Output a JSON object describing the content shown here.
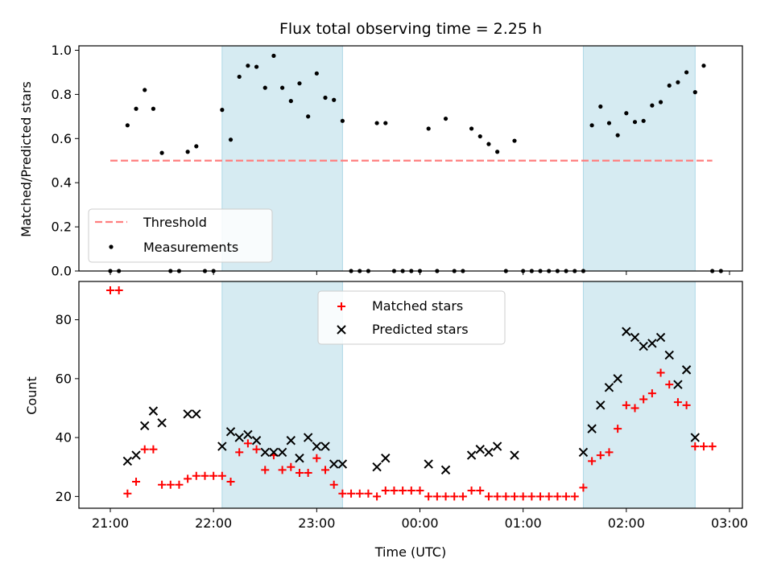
{
  "chart_data": [
    {
      "type": "scatter",
      "title": "Flux total observing time = 2.25 h",
      "xlabel": "",
      "ylabel": "Matched/Predicted stars",
      "ylim": [
        0,
        1.02
      ],
      "yticks": [
        "0.0",
        "0.2",
        "0.4",
        "0.6",
        "0.8",
        "1.0"
      ],
      "shaded_intervals": [
        [
          "22:05",
          "23:15"
        ],
        [
          "01:35",
          "02:40"
        ]
      ],
      "shade_color": "#add8e6",
      "threshold": {
        "name": "Threshold",
        "value": 0.5,
        "x_start": "21:00",
        "x_end": "02:50",
        "color": "#ff7f7f",
        "style": "dashed"
      },
      "series": [
        {
          "name": "Measurements",
          "marker": "dot",
          "color": "#000000",
          "points": [
            [
              "21:00",
              0
            ],
            [
              "21:05",
              0
            ],
            [
              "21:10",
              0.66
            ],
            [
              "21:15",
              0.735
            ],
            [
              "21:20",
              0.82
            ],
            [
              "21:25",
              0.735
            ],
            [
              "21:30",
              0.535
            ],
            [
              "21:35",
              0
            ],
            [
              "21:40",
              0
            ],
            [
              "21:45",
              0.54
            ],
            [
              "21:50",
              0.565
            ],
            [
              "21:55",
              0
            ],
            [
              "22:00",
              0
            ],
            [
              "22:05",
              0.73
            ],
            [
              "22:10",
              0.595
            ],
            [
              "22:15",
              0.88
            ],
            [
              "22:20",
              0.93
            ],
            [
              "22:25",
              0.925
            ],
            [
              "22:30",
              0.83
            ],
            [
              "22:35",
              0.975
            ],
            [
              "22:40",
              0.83
            ],
            [
              "22:45",
              0.77
            ],
            [
              "22:50",
              0.85
            ],
            [
              "22:55",
              0.7
            ],
            [
              "23:00",
              0.895
            ],
            [
              "23:05",
              0.785
            ],
            [
              "23:10",
              0.775
            ],
            [
              "23:15",
              0.68
            ],
            [
              "23:20",
              0
            ],
            [
              "23:25",
              0
            ],
            [
              "23:30",
              0
            ],
            [
              "23:35",
              0.67
            ],
            [
              "23:40",
              0.67
            ],
            [
              "23:45",
              0
            ],
            [
              "23:50",
              0
            ],
            [
              "23:55",
              0
            ],
            [
              "00:00",
              0
            ],
            [
              "00:05",
              0.645
            ],
            [
              "00:10",
              0
            ],
            [
              "00:15",
              0.69
            ],
            [
              "00:20",
              0
            ],
            [
              "00:25",
              0
            ],
            [
              "00:30",
              0.645
            ],
            [
              "00:35",
              0.61
            ],
            [
              "00:40",
              0.575
            ],
            [
              "00:45",
              0.54
            ],
            [
              "00:50",
              0
            ],
            [
              "00:55",
              0.59
            ],
            [
              "01:00",
              0
            ],
            [
              "01:05",
              0
            ],
            [
              "01:10",
              0
            ],
            [
              "01:15",
              0
            ],
            [
              "01:20",
              0
            ],
            [
              "01:25",
              0
            ],
            [
              "01:30",
              0
            ],
            [
              "01:35",
              0
            ],
            [
              "01:40",
              0.66
            ],
            [
              "01:45",
              0.745
            ],
            [
              "01:50",
              0.67
            ],
            [
              "01:55",
              0.615
            ],
            [
              "02:00",
              0.715
            ],
            [
              "02:05",
              0.675
            ],
            [
              "02:10",
              0.68
            ],
            [
              "02:15",
              0.75
            ],
            [
              "02:20",
              0.765
            ],
            [
              "02:25",
              0.84
            ],
            [
              "02:30",
              0.855
            ],
            [
              "02:35",
              0.9
            ],
            [
              "02:40",
              0.81
            ],
            [
              "02:45",
              0.93
            ],
            [
              "02:50",
              0
            ],
            [
              "02:55",
              0
            ]
          ]
        }
      ],
      "legend": {
        "position": "lower-left",
        "entries": [
          "Threshold",
          "Measurements"
        ]
      }
    },
    {
      "type": "scatter",
      "title": "",
      "xlabel": "Time (UTC)",
      "ylabel": "Count",
      "ylim": [
        16,
        93
      ],
      "yticks": [
        "20",
        "40",
        "60",
        "80"
      ],
      "xticks": [
        "21:00",
        "22:00",
        "23:00",
        "00:00",
        "01:00",
        "02:00",
        "03:00"
      ],
      "shaded_intervals": [
        [
          "22:05",
          "23:15"
        ],
        [
          "01:35",
          "02:40"
        ]
      ],
      "shade_color": "#add8e6",
      "series": [
        {
          "name": "Matched stars",
          "marker": "plus",
          "color": "#ff0000",
          "points": [
            [
              "21:00",
              90
            ],
            [
              "21:05",
              90
            ],
            [
              "21:10",
              21
            ],
            [
              "21:15",
              25
            ],
            [
              "21:20",
              36
            ],
            [
              "21:25",
              36
            ],
            [
              "21:30",
              24
            ],
            [
              "21:35",
              24
            ],
            [
              "21:40",
              24
            ],
            [
              "21:45",
              26
            ],
            [
              "21:50",
              27
            ],
            [
              "21:55",
              27
            ],
            [
              "22:00",
              27
            ],
            [
              "22:05",
              27
            ],
            [
              "22:10",
              25
            ],
            [
              "22:15",
              35
            ],
            [
              "22:20",
              38
            ],
            [
              "22:25",
              36
            ],
            [
              "22:30",
              29
            ],
            [
              "22:35",
              34
            ],
            [
              "22:40",
              29
            ],
            [
              "22:45",
              30
            ],
            [
              "22:50",
              28
            ],
            [
              "22:55",
              28
            ],
            [
              "23:00",
              33
            ],
            [
              "23:05",
              29
            ],
            [
              "23:10",
              24
            ],
            [
              "23:15",
              21
            ],
            [
              "23:20",
              21
            ],
            [
              "23:25",
              21
            ],
            [
              "23:30",
              21
            ],
            [
              "23:35",
              20
            ],
            [
              "23:40",
              22
            ],
            [
              "23:45",
              22
            ],
            [
              "23:50",
              22
            ],
            [
              "23:55",
              22
            ],
            [
              "00:00",
              22
            ],
            [
              "00:05",
              20
            ],
            [
              "00:10",
              20
            ],
            [
              "00:15",
              20
            ],
            [
              "00:20",
              20
            ],
            [
              "00:25",
              20
            ],
            [
              "00:30",
              22
            ],
            [
              "00:35",
              22
            ],
            [
              "00:40",
              20
            ],
            [
              "00:45",
              20
            ],
            [
              "00:50",
              20
            ],
            [
              "00:55",
              20
            ],
            [
              "01:00",
              20
            ],
            [
              "01:05",
              20
            ],
            [
              "01:10",
              20
            ],
            [
              "01:15",
              20
            ],
            [
              "01:20",
              20
            ],
            [
              "01:25",
              20
            ],
            [
              "01:30",
              20
            ],
            [
              "01:35",
              23
            ],
            [
              "01:40",
              32
            ],
            [
              "01:45",
              34
            ],
            [
              "01:50",
              35
            ],
            [
              "01:55",
              43
            ],
            [
              "02:00",
              51
            ],
            [
              "02:05",
              50
            ],
            [
              "02:10",
              53
            ],
            [
              "02:15",
              55
            ],
            [
              "02:20",
              62
            ],
            [
              "02:25",
              58
            ],
            [
              "02:30",
              52
            ],
            [
              "02:35",
              51
            ],
            [
              "02:40",
              37
            ],
            [
              "02:45",
              37
            ],
            [
              "02:50",
              37
            ]
          ]
        },
        {
          "name": "Predicted stars",
          "marker": "x",
          "color": "#000000",
          "points": [
            [
              "21:10",
              32
            ],
            [
              "21:15",
              34
            ],
            [
              "21:20",
              44
            ],
            [
              "21:25",
              49
            ],
            [
              "21:30",
              45
            ],
            [
              "21:45",
              48
            ],
            [
              "21:50",
              48
            ],
            [
              "22:05",
              37
            ],
            [
              "22:10",
              42
            ],
            [
              "22:15",
              40
            ],
            [
              "22:20",
              41
            ],
            [
              "22:25",
              39
            ],
            [
              "22:30",
              35
            ],
            [
              "22:35",
              35
            ],
            [
              "22:40",
              35
            ],
            [
              "22:45",
              39
            ],
            [
              "22:50",
              33
            ],
            [
              "22:55",
              40
            ],
            [
              "23:00",
              37
            ],
            [
              "23:05",
              37
            ],
            [
              "23:10",
              31
            ],
            [
              "23:15",
              31
            ],
            [
              "23:35",
              30
            ],
            [
              "23:40",
              33
            ],
            [
              "00:05",
              31
            ],
            [
              "00:15",
              29
            ],
            [
              "00:30",
              34
            ],
            [
              "00:35",
              36
            ],
            [
              "00:40",
              35
            ],
            [
              "00:45",
              37
            ],
            [
              "00:55",
              34
            ],
            [
              "01:35",
              35
            ],
            [
              "01:40",
              43
            ],
            [
              "01:45",
              51
            ],
            [
              "01:50",
              57
            ],
            [
              "01:55",
              60
            ],
            [
              "02:00",
              76
            ],
            [
              "02:05",
              74
            ],
            [
              "02:10",
              71
            ],
            [
              "02:15",
              72
            ],
            [
              "02:20",
              74
            ],
            [
              "02:25",
              68
            ],
            [
              "02:30",
              58
            ],
            [
              "02:35",
              63
            ],
            [
              "02:40",
              40
            ]
          ]
        }
      ],
      "legend": {
        "position": "upper-center",
        "entries": [
          "Matched stars",
          "Predicted stars"
        ]
      }
    }
  ]
}
